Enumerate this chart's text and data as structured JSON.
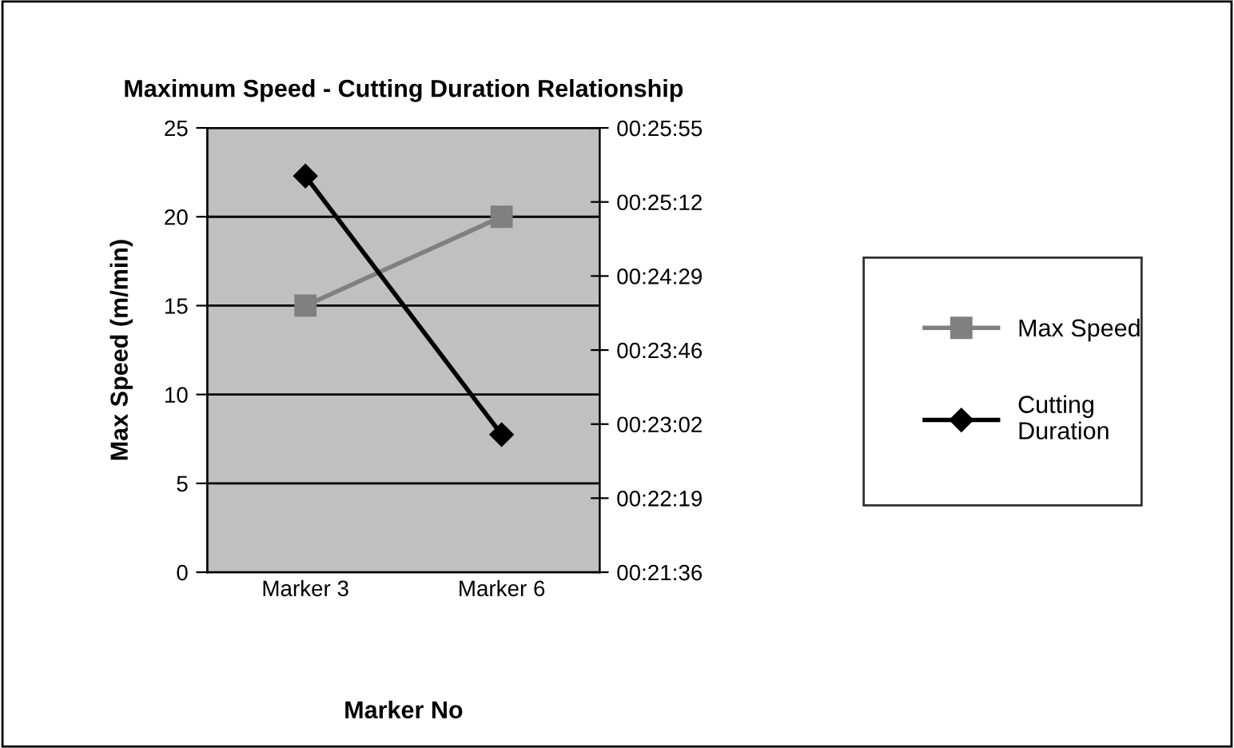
{
  "chart_data": {
    "type": "line",
    "title": "Maximum Speed - Cutting Duration Relationship",
    "xlabel": "Marker No",
    "ylabel": "Max Speed (m/min)",
    "categories": [
      "Marker 3",
      "Marker 6"
    ],
    "series": [
      {
        "name": "Max Speed",
        "color": "#808080",
        "values": [
          15,
          20
        ],
        "marker": "square"
      },
      {
        "name": "Cutting Duration",
        "color": "#000000",
        "values": [
          0.4242,
          0.3823
        ],
        "axis": "y2",
        "marker": "diamond"
      }
    ],
    "ylim": [
      0,
      25
    ],
    "yticks": [
      0,
      5,
      10,
      15,
      20,
      25
    ],
    "y2lim": [
      0.36,
      0.432
    ],
    "y2ticks": [
      {
        "value": 0.36,
        "label": "00:21:36"
      },
      {
        "value": 0.372,
        "label": "00:22:19"
      },
      {
        "value": 0.384,
        "label": "00:23:02"
      },
      {
        "value": 0.396,
        "label": "00:23:46"
      },
      {
        "value": 0.408,
        "label": "00:24:29"
      },
      {
        "value": 0.42,
        "label": "00:25:12"
      },
      {
        "value": 0.432,
        "label": "00:25:55"
      }
    ],
    "grid": "y",
    "legend": "right",
    "line_style": "solid"
  }
}
